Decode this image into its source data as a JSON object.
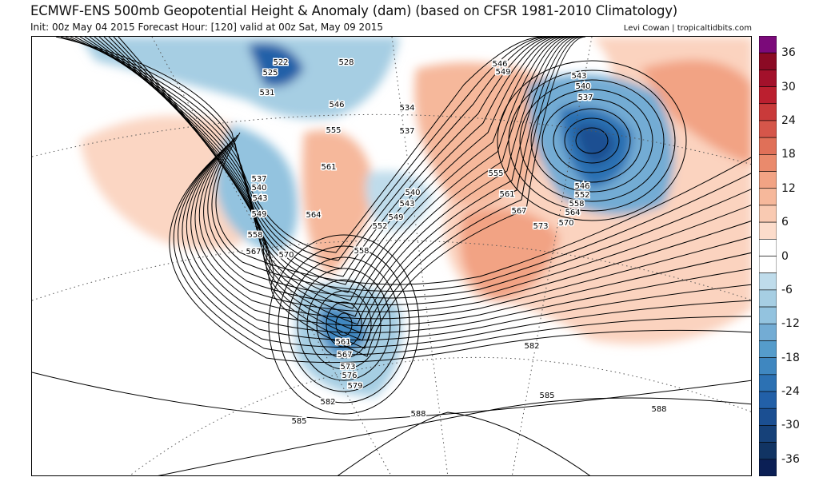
{
  "header": {
    "title": "ECMWF-ENS 500mb Geopotential Height & Anomaly (dam) (based on CFSR 1981-2010 Climatology)",
    "subtitle": "Init: 00z May 04 2015   Forecast Hour: [120]   valid at 00z Sat, May 09 2015",
    "credit": "Levi Cowan | tropicaltidbits.com"
  },
  "colorbar": {
    "labels": [
      "36",
      "30",
      "24",
      "18",
      "12",
      "6",
      "0",
      "-6",
      "-12",
      "-18",
      "-24",
      "-30",
      "-36"
    ],
    "colors": [
      "#7b0a7a",
      "#8b0a24",
      "#a3112b",
      "#bb1f2f",
      "#c93a3a",
      "#d5564a",
      "#e07058",
      "#ea8a6c",
      "#f2a384",
      "#f6b89b",
      "#f9cab2",
      "#fcdccb",
      "#ffffff",
      "#ffffff",
      "#bfdceb",
      "#a6cee3",
      "#93c3df",
      "#73acd4",
      "#559ccb",
      "#3f87c0",
      "#2c71b3",
      "#2260a8",
      "#1b4f92",
      "#164179",
      "#113463",
      "#0b1f55"
    ]
  },
  "map": {
    "contour_labels": [
      "522",
      "528",
      "525",
      "531",
      "546",
      "555",
      "561",
      "537",
      "540",
      "543",
      "549",
      "564",
      "558",
      "567",
      "570",
      "558",
      "546",
      "549",
      "543",
      "540",
      "537",
      "534",
      "537",
      "540",
      "543",
      "549",
      "552",
      "555",
      "561",
      "567",
      "573",
      "546",
      "552",
      "558",
      "564",
      "570",
      "561",
      "567",
      "573",
      "576",
      "579",
      "582",
      "585",
      "588",
      "585",
      "582",
      "588"
    ]
  }
}
